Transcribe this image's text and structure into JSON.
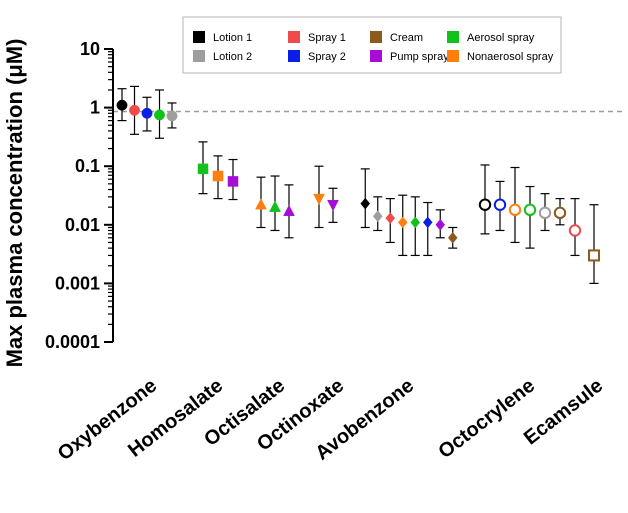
{
  "chart_data": {
    "type": "scatter",
    "y_scale": "log",
    "ylim": [
      0.0001,
      10
    ],
    "ylabel": "Max plasma concentration (μM)",
    "yticks": [
      {
        "value": 10,
        "label": "10"
      },
      {
        "value": 1,
        "label": "1"
      },
      {
        "value": 0.1,
        "label": "0.1"
      },
      {
        "value": 0.01,
        "label": "0.01"
      },
      {
        "value": 0.001,
        "label": "0.001"
      },
      {
        "value": 0.0001,
        "label": "0.0001"
      }
    ],
    "reference_line": {
      "value": 0.86,
      "style": "dashed",
      "color": "#9e9e9e"
    },
    "legend": [
      {
        "name": "Lotion 1",
        "color": "#000000"
      },
      {
        "name": "Lotion 2",
        "color": "#9e9e9e"
      },
      {
        "name": "Spray 1",
        "color": "#f04b4b"
      },
      {
        "name": "Spray 2",
        "color": "#0a1fe6"
      },
      {
        "name": "Cream",
        "color": "#8b5a1e"
      },
      {
        "name": "Pump spray",
        "color": "#a60ed6"
      },
      {
        "name": "Aerosol spray",
        "color": "#11c21b"
      },
      {
        "name": "Nonaerosol spray",
        "color": "#ff7f0e"
      }
    ],
    "categories": [
      "Oxybenzone",
      "Homosalate",
      "Octisalate",
      "Octinoxate",
      "Avobenzone",
      "Octocrylene",
      "Ecamsule"
    ],
    "points": [
      {
        "category": "Oxybenzone",
        "product": "Lotion 1",
        "marker": "circle",
        "filled": true,
        "value": 1.1,
        "low": 0.6,
        "high": 2.1
      },
      {
        "category": "Oxybenzone",
        "product": "Spray 1",
        "marker": "circle",
        "filled": true,
        "value": 0.9,
        "low": 0.35,
        "high": 2.3
      },
      {
        "category": "Oxybenzone",
        "product": "Spray 2",
        "marker": "circle",
        "filled": true,
        "value": 0.8,
        "low": 0.4,
        "high": 1.5
      },
      {
        "category": "Oxybenzone",
        "product": "Aerosol spray",
        "marker": "circle",
        "filled": true,
        "value": 0.75,
        "low": 0.3,
        "high": 2.0
      },
      {
        "category": "Oxybenzone",
        "product": "Lotion 2",
        "marker": "circle",
        "filled": true,
        "value": 0.72,
        "low": 0.45,
        "high": 1.2
      },
      {
        "category": "Homosalate",
        "product": "Aerosol spray",
        "marker": "square",
        "filled": true,
        "value": 0.09,
        "low": 0.034,
        "high": 0.26
      },
      {
        "category": "Homosalate",
        "product": "Nonaerosol spray",
        "marker": "square",
        "filled": true,
        "value": 0.068,
        "low": 0.028,
        "high": 0.15
      },
      {
        "category": "Homosalate",
        "product": "Pump spray",
        "marker": "square",
        "filled": true,
        "value": 0.055,
        "low": 0.027,
        "high": 0.13
      },
      {
        "category": "Octisalate",
        "product": "Nonaerosol spray",
        "marker": "triangle",
        "filled": true,
        "value": 0.022,
        "low": 0.009,
        "high": 0.065
      },
      {
        "category": "Octisalate",
        "product": "Aerosol spray",
        "marker": "triangle",
        "filled": true,
        "value": 0.02,
        "low": 0.008,
        "high": 0.068
      },
      {
        "category": "Octisalate",
        "product": "Pump spray",
        "marker": "triangle",
        "filled": true,
        "value": 0.017,
        "low": 0.006,
        "high": 0.048
      },
      {
        "category": "Octinoxate",
        "product": "Nonaerosol spray",
        "marker": "triangle-down",
        "filled": true,
        "value": 0.028,
        "low": 0.009,
        "high": 0.1
      },
      {
        "category": "Octinoxate",
        "product": "Pump spray",
        "marker": "triangle-down",
        "filled": true,
        "value": 0.022,
        "low": 0.011,
        "high": 0.042
      },
      {
        "category": "Avobenzone",
        "product": "Lotion 1",
        "marker": "diamond",
        "filled": true,
        "value": 0.023,
        "low": 0.009,
        "high": 0.09
      },
      {
        "category": "Avobenzone",
        "product": "Lotion 2",
        "marker": "diamond",
        "filled": true,
        "value": 0.014,
        "low": 0.008,
        "high": 0.03
      },
      {
        "category": "Avobenzone",
        "product": "Spray 1",
        "marker": "diamond",
        "filled": true,
        "value": 0.013,
        "low": 0.005,
        "high": 0.028
      },
      {
        "category": "Avobenzone",
        "product": "Nonaerosol spray",
        "marker": "diamond",
        "filled": true,
        "value": 0.011,
        "low": 0.003,
        "high": 0.032
      },
      {
        "category": "Avobenzone",
        "product": "Aerosol spray",
        "marker": "diamond",
        "filled": true,
        "value": 0.011,
        "low": 0.003,
        "high": 0.03
      },
      {
        "category": "Avobenzone",
        "product": "Spray 2",
        "marker": "diamond",
        "filled": true,
        "value": 0.011,
        "low": 0.003,
        "high": 0.024
      },
      {
        "category": "Avobenzone",
        "product": "Pump spray",
        "marker": "diamond",
        "filled": true,
        "value": 0.01,
        "low": 0.006,
        "high": 0.018
      },
      {
        "category": "Avobenzone",
        "product": "Cream",
        "marker": "diamond",
        "filled": true,
        "value": 0.006,
        "low": 0.004,
        "high": 0.009
      },
      {
        "category": "Octocrylene",
        "product": "Lotion 1",
        "marker": "circle",
        "filled": false,
        "value": 0.022,
        "low": 0.007,
        "high": 0.105
      },
      {
        "category": "Octocrylene",
        "product": "Spray 2",
        "marker": "circle",
        "filled": false,
        "value": 0.022,
        "low": 0.008,
        "high": 0.055
      },
      {
        "category": "Octocrylene",
        "product": "Nonaerosol spray",
        "marker": "circle",
        "filled": false,
        "value": 0.018,
        "low": 0.005,
        "high": 0.095
      },
      {
        "category": "Octocrylene",
        "product": "Aerosol spray",
        "marker": "circle",
        "filled": false,
        "value": 0.018,
        "low": 0.004,
        "high": 0.045
      },
      {
        "category": "Octocrylene",
        "product": "Lotion 2",
        "marker": "circle",
        "filled": false,
        "value": 0.016,
        "low": 0.008,
        "high": 0.034
      },
      {
        "category": "Octocrylene",
        "product": "Cream",
        "marker": "circle",
        "filled": false,
        "value": 0.016,
        "low": 0.01,
        "high": 0.028
      },
      {
        "category": "Octocrylene",
        "product": "Spray 1",
        "marker": "circle",
        "filled": false,
        "value": 0.008,
        "low": 0.003,
        "high": 0.028
      },
      {
        "category": "Ecamsule",
        "product": "Cream",
        "marker": "square",
        "filled": false,
        "value": 0.003,
        "low": 0.001,
        "high": 0.022
      }
    ]
  }
}
